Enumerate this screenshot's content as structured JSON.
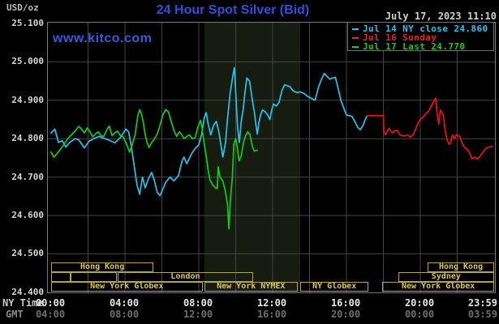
{
  "header": {
    "unit_label": "USD/oz",
    "title": "24 Hour Spot Silver (Bid)",
    "datetime": "July 17, 2023 11:10",
    "watermark": "www.kitco.com"
  },
  "legend": {
    "items": [
      {
        "label": "Jul 14 NY close 24.860",
        "color": "#28c2f0"
      },
      {
        "label": "Jul 16 Sunday",
        "color": "#ee2020"
      },
      {
        "label": "Jul 17 Last 24.770",
        "color": "#12cd12"
      }
    ]
  },
  "axes": {
    "x_row1_label": "NY Time",
    "x_row2_label": "GMT",
    "y_ticks": [
      "25.100",
      "25.000",
      "24.900",
      "24.800",
      "24.700",
      "24.600",
      "24.500",
      "24.400"
    ],
    "ny_times": [
      "00:00",
      "04:00",
      "08:00",
      "12:00",
      "16:00",
      "20:00",
      "23:59"
    ],
    "gmt_times": [
      "04:00",
      "08:00",
      "12:00",
      "16:00",
      "20:00",
      "00:00",
      "03:59"
    ]
  },
  "sessions": [
    {
      "row": 1,
      "label": "Hong Kong",
      "start_h": 0.0,
      "end_h": 5.55
    },
    {
      "row": 1,
      "label": "Hong Kong",
      "start_h": 20.4,
      "end_h": 24.0
    },
    {
      "row": 2,
      "label": "",
      "start_h": 0.0,
      "end_h": 1.05
    },
    {
      "row": 2,
      "label": "",
      "start_h": 1.05,
      "end_h": 3.55
    },
    {
      "row": 2,
      "label": "London",
      "start_h": 3.6,
      "end_h": 10.95
    },
    {
      "row": 2,
      "label": "Sydney",
      "start_h": 18.8,
      "end_h": 24.0
    },
    {
      "row": 3,
      "label": "New York Globex",
      "start_h": 0.0,
      "end_h": 8.2
    },
    {
      "row": 3,
      "label": "New York NYMEX",
      "start_h": 8.3,
      "end_h": 13.35
    },
    {
      "row": 3,
      "label": "NY Globex",
      "start_h": 13.5,
      "end_h": 17.2
    },
    {
      "row": 3,
      "label": "New York Globex",
      "start_h": 17.95,
      "end_h": 24.0
    }
  ],
  "chart_data": {
    "type": "line",
    "title": "24 Hour Spot Silver (Bid)",
    "xlabel": "NY Time (hours 00:00-23:59)",
    "ylabel": "USD/oz",
    "ylim": [
      24.4,
      25.1
    ],
    "xlim_hours": [
      0,
      24
    ],
    "grid": true,
    "y_grid_step": 0.1,
    "x_grid_step_hours": 2,
    "legend_position": "top-right",
    "shaded_region_hours": [
      8.3,
      13.5
    ],
    "series": [
      {
        "name": "Jul 14 NY close 24.860",
        "color": "#28c2f0",
        "close_value": 24.86,
        "points": [
          [
            0,
            24.815
          ],
          [
            0.2,
            24.825
          ],
          [
            0.4,
            24.79
          ],
          [
            0.6,
            24.795
          ],
          [
            0.8,
            24.778
          ],
          [
            1.0,
            24.79
          ],
          [
            1.3,
            24.8
          ],
          [
            1.5,
            24.797
          ],
          [
            1.8,
            24.776
          ],
          [
            2.05,
            24.793
          ],
          [
            2.3,
            24.8
          ],
          [
            2.6,
            24.806
          ],
          [
            2.9,
            24.8
          ],
          [
            3.1,
            24.797
          ],
          [
            3.45,
            24.789
          ],
          [
            3.75,
            24.803
          ],
          [
            4.05,
            24.825
          ],
          [
            4.2,
            24.818
          ],
          [
            4.35,
            24.779
          ],
          [
            4.5,
            24.729
          ],
          [
            4.65,
            24.68
          ],
          [
            4.8,
            24.655
          ],
          [
            4.95,
            24.7
          ],
          [
            5.1,
            24.672
          ],
          [
            5.25,
            24.693
          ],
          [
            5.45,
            24.712
          ],
          [
            5.6,
            24.69
          ],
          [
            5.75,
            24.66
          ],
          [
            5.9,
            24.652
          ],
          [
            6.05,
            24.668
          ],
          [
            6.2,
            24.686
          ],
          [
            6.45,
            24.7
          ],
          [
            6.65,
            24.69
          ],
          [
            6.9,
            24.704
          ],
          [
            7.1,
            24.743
          ],
          [
            7.2,
            24.752
          ],
          [
            7.35,
            24.735
          ],
          [
            7.6,
            24.76
          ],
          [
            7.8,
            24.774
          ],
          [
            8.0,
            24.784
          ],
          [
            8.15,
            24.81
          ],
          [
            8.3,
            24.855
          ],
          [
            8.4,
            24.868
          ],
          [
            8.5,
            24.84
          ],
          [
            8.65,
            24.81
          ],
          [
            8.8,
            24.835
          ],
          [
            8.95,
            24.845
          ],
          [
            9.1,
            24.815
          ],
          [
            9.3,
            24.752
          ],
          [
            9.45,
            24.79
          ],
          [
            9.55,
            24.85
          ],
          [
            9.7,
            24.92
          ],
          [
            9.85,
            24.965
          ],
          [
            9.93,
            24.985
          ],
          [
            10.0,
            24.92
          ],
          [
            10.1,
            24.83
          ],
          [
            10.2,
            24.79
          ],
          [
            10.3,
            24.845
          ],
          [
            10.4,
            24.875
          ],
          [
            10.5,
            24.92
          ],
          [
            10.6,
            24.958
          ],
          [
            10.75,
            24.95
          ],
          [
            10.9,
            24.9
          ],
          [
            11.0,
            24.872
          ],
          [
            11.1,
            24.835
          ],
          [
            11.17,
            24.812
          ],
          [
            11.25,
            24.84
          ],
          [
            11.35,
            24.862
          ],
          [
            11.45,
            24.875
          ],
          [
            11.6,
            24.87
          ],
          [
            11.75,
            24.86
          ],
          [
            11.85,
            24.85
          ],
          [
            11.95,
            24.875
          ],
          [
            12.05,
            24.89
          ],
          [
            12.2,
            24.885
          ],
          [
            12.35,
            24.895
          ],
          [
            12.5,
            24.925
          ],
          [
            12.65,
            24.94
          ],
          [
            12.8,
            24.938
          ],
          [
            12.95,
            24.935
          ],
          [
            13.1,
            24.925
          ],
          [
            13.3,
            24.92
          ],
          [
            13.5,
            24.922
          ],
          [
            13.7,
            24.918
          ],
          [
            13.9,
            24.91
          ],
          [
            14.1,
            24.905
          ],
          [
            14.3,
            24.9
          ],
          [
            14.5,
            24.937
          ],
          [
            14.65,
            24.955
          ],
          [
            14.8,
            24.97
          ],
          [
            14.95,
            24.962
          ],
          [
            15.1,
            24.955
          ],
          [
            15.25,
            24.958
          ],
          [
            15.4,
            24.96
          ],
          [
            15.55,
            24.93
          ],
          [
            15.7,
            24.9
          ],
          [
            15.85,
            24.88
          ],
          [
            16.0,
            24.862
          ],
          [
            16.15,
            24.86
          ],
          [
            16.3,
            24.858
          ],
          [
            16.45,
            24.845
          ],
          [
            16.6,
            24.83
          ],
          [
            16.75,
            24.823
          ],
          [
            16.9,
            24.835
          ],
          [
            17.0,
            24.848
          ],
          [
            17.1,
            24.858
          ]
        ]
      },
      {
        "name": "Jul 16 Sunday",
        "color": "#f01010",
        "points": [
          [
            17.13,
            24.86
          ],
          [
            18.0,
            24.86
          ],
          [
            18.02,
            24.82
          ],
          [
            18.1,
            24.81
          ],
          [
            18.2,
            24.818
          ],
          [
            18.3,
            24.827
          ],
          [
            18.4,
            24.82
          ],
          [
            18.5,
            24.815
          ],
          [
            18.6,
            24.82
          ],
          [
            18.75,
            24.822
          ],
          [
            18.9,
            24.81
          ],
          [
            19.0,
            24.808
          ],
          [
            19.15,
            24.807
          ],
          [
            19.3,
            24.81
          ],
          [
            19.45,
            24.804
          ],
          [
            19.6,
            24.81
          ],
          [
            19.75,
            24.825
          ],
          [
            19.85,
            24.838
          ],
          [
            20.0,
            24.85
          ],
          [
            20.15,
            24.856
          ],
          [
            20.3,
            24.865
          ],
          [
            20.45,
            24.872
          ],
          [
            20.55,
            24.88
          ],
          [
            20.65,
            24.89
          ],
          [
            20.78,
            24.902
          ],
          [
            20.85,
            24.905
          ],
          [
            20.9,
            24.868
          ],
          [
            21.0,
            24.838
          ],
          [
            21.08,
            24.875
          ],
          [
            21.15,
            24.87
          ],
          [
            21.25,
            24.862
          ],
          [
            21.35,
            24.82
          ],
          [
            21.45,
            24.797
          ],
          [
            21.55,
            24.786
          ],
          [
            21.65,
            24.79
          ],
          [
            21.75,
            24.81
          ],
          [
            21.85,
            24.8
          ],
          [
            21.95,
            24.81
          ],
          [
            22.05,
            24.808
          ],
          [
            22.15,
            24.805
          ],
          [
            22.25,
            24.79
          ],
          [
            22.35,
            24.78
          ],
          [
            22.5,
            24.773
          ],
          [
            22.65,
            24.765
          ],
          [
            22.8,
            24.748
          ],
          [
            22.95,
            24.752
          ],
          [
            23.1,
            24.747
          ],
          [
            23.25,
            24.755
          ],
          [
            23.4,
            24.765
          ],
          [
            23.55,
            24.775
          ],
          [
            23.7,
            24.778
          ],
          [
            23.9,
            24.78
          ]
        ]
      },
      {
        "name": "Jul 17 Last 24.770",
        "color": "#12cd12",
        "last_value": 24.77,
        "points": [
          [
            0,
            24.765
          ],
          [
            0.15,
            24.752
          ],
          [
            0.3,
            24.76
          ],
          [
            0.5,
            24.772
          ],
          [
            0.7,
            24.785
          ],
          [
            0.9,
            24.8
          ],
          [
            1.1,
            24.81
          ],
          [
            1.3,
            24.82
          ],
          [
            1.5,
            24.832
          ],
          [
            1.65,
            24.825
          ],
          [
            1.8,
            24.815
          ],
          [
            1.95,
            24.828
          ],
          [
            2.1,
            24.818
          ],
          [
            2.25,
            24.805
          ],
          [
            2.4,
            24.812
          ],
          [
            2.55,
            24.818
          ],
          [
            2.7,
            24.808
          ],
          [
            2.85,
            24.806
          ],
          [
            3.0,
            24.822
          ],
          [
            3.15,
            24.833
          ],
          [
            3.3,
            24.808
          ],
          [
            3.45,
            24.815
          ],
          [
            3.6,
            24.82
          ],
          [
            3.75,
            24.808
          ],
          [
            3.9,
            24.805
          ],
          [
            4.0,
            24.795
          ],
          [
            4.15,
            24.778
          ],
          [
            4.25,
            24.765
          ],
          [
            4.4,
            24.785
          ],
          [
            4.55,
            24.81
          ],
          [
            4.7,
            24.86
          ],
          [
            4.8,
            24.876
          ],
          [
            4.9,
            24.864
          ],
          [
            5.0,
            24.84
          ],
          [
            5.1,
            24.81
          ],
          [
            5.2,
            24.79
          ],
          [
            5.3,
            24.777
          ],
          [
            5.45,
            24.79
          ],
          [
            5.6,
            24.8
          ],
          [
            5.75,
            24.812
          ],
          [
            5.9,
            24.835
          ],
          [
            6.05,
            24.861
          ],
          [
            6.2,
            24.876
          ],
          [
            6.35,
            24.87
          ],
          [
            6.5,
            24.845
          ],
          [
            6.65,
            24.822
          ],
          [
            6.8,
            24.806
          ],
          [
            6.95,
            24.818
          ],
          [
            7.05,
            24.812
          ],
          [
            7.2,
            24.8
          ],
          [
            7.35,
            24.806
          ],
          [
            7.5,
            24.81
          ],
          [
            7.65,
            24.8
          ],
          [
            7.8,
            24.802
          ],
          [
            7.95,
            24.83
          ],
          [
            8.1,
            24.848
          ],
          [
            8.2,
            24.82
          ],
          [
            8.3,
            24.785
          ],
          [
            8.4,
            24.755
          ],
          [
            8.5,
            24.72
          ],
          [
            8.6,
            24.693
          ],
          [
            8.75,
            24.68
          ],
          [
            8.9,
            24.672
          ],
          [
            9.0,
            24.67
          ],
          [
            9.05,
            24.727
          ],
          [
            9.15,
            24.7
          ],
          [
            9.3,
            24.69
          ],
          [
            9.45,
            24.66
          ],
          [
            9.55,
            24.63
          ],
          [
            9.63,
            24.565
          ],
          [
            9.72,
            24.645
          ],
          [
            9.82,
            24.7
          ],
          [
            9.9,
            24.786
          ],
          [
            10.0,
            24.8
          ],
          [
            10.08,
            24.78
          ],
          [
            10.18,
            24.742
          ],
          [
            10.3,
            24.755
          ],
          [
            10.42,
            24.79
          ],
          [
            10.52,
            24.806
          ],
          [
            10.65,
            24.818
          ],
          [
            10.78,
            24.81
          ],
          [
            10.9,
            24.78
          ],
          [
            11.0,
            24.768
          ],
          [
            11.17,
            24.77
          ]
        ]
      }
    ]
  },
  "colors": {
    "background": "#000000",
    "grid": "#454545",
    "plot_border": "#7a7a7a",
    "title_blue": "#2e50da",
    "kitco_blue": "#3a5ad9",
    "date_gray": "#cfcfcf",
    "axis_label_gray": "#d6d6d6",
    "gmt_gray": "#6e6e6e",
    "session_border": "#b3a445",
    "session_text": "#d9c654",
    "nymex_shade": "#161c10",
    "cyan_line": "#28c2f0",
    "red_line": "#f01010",
    "green_line": "#12cd12"
  }
}
